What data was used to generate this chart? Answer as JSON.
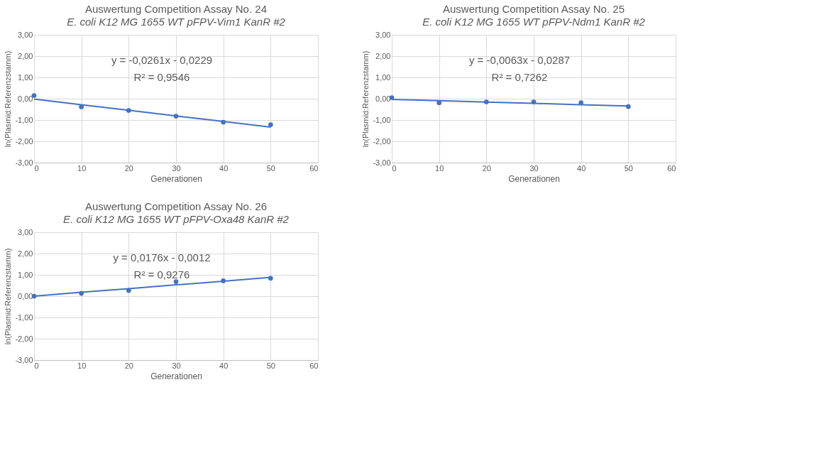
{
  "chart_data": [
    {
      "type": "scatter",
      "title": "Auswertung Competition Assay No. 24",
      "subtitle": "E. coli K12 MG 1655 WT pFPV-Vim1 KanR #2",
      "xlabel": "Generationen",
      "ylabel": "ln(Plasmid:Referenzstamm)",
      "x": [
        0,
        10,
        20,
        30,
        40,
        50
      ],
      "series": [
        {
          "color": "#4472c4",
          "values": [
            0.15,
            -0.38,
            -0.55,
            -0.82,
            -1.1,
            -1.22
          ]
        },
        {
          "type": "line",
          "marker": "none",
          "color": "#4472c4",
          "values": [
            -0.02,
            -0.28,
            -0.54,
            -0.81,
            -1.07,
            -1.33
          ]
        }
      ],
      "xlim": [
        0,
        60
      ],
      "xticks": [
        0,
        10,
        20,
        30,
        40,
        50,
        60
      ],
      "ylim": [
        -3,
        3
      ],
      "yticks": [
        {
          "value": -3,
          "label": "-3,00"
        },
        {
          "value": -2,
          "label": "-2,00"
        },
        {
          "value": -1,
          "label": "-1,00"
        },
        {
          "value": 0,
          "label": "0,00"
        },
        {
          "value": 1,
          "label": "1,00"
        },
        {
          "value": 2,
          "label": "2,00"
        },
        {
          "value": 3,
          "label": "3,00"
        }
      ],
      "annotations": [
        "y = -0,0261x - 0,0229",
        "R² = 0,9546"
      ],
      "grid": true,
      "marker": "circle",
      "line_style": "solid"
    },
    {
      "type": "scatter",
      "title": "Auswertung Competition Assay No. 25",
      "subtitle": "E. coli K12 MG 1655 WT pFPV-Ndm1 KanR #2",
      "xlabel": "Generationen",
      "ylabel": "ln(Plasmid:Referenzstamm)",
      "x": [
        0,
        10,
        20,
        30,
        40,
        50
      ],
      "series": [
        {
          "color": "#4472c4",
          "values": [
            0.05,
            -0.19,
            -0.15,
            -0.15,
            -0.19,
            -0.37
          ]
        },
        {
          "type": "line",
          "marker": "none",
          "color": "#4472c4",
          "values": [
            -0.03,
            -0.09,
            -0.16,
            -0.22,
            -0.28,
            -0.34
          ]
        }
      ],
      "xlim": [
        0,
        60
      ],
      "xticks": [
        0,
        10,
        20,
        30,
        40,
        50,
        60
      ],
      "ylim": [
        -3,
        3
      ],
      "yticks": [
        {
          "value": -3,
          "label": "-3,00"
        },
        {
          "value": -2,
          "label": "-2,00"
        },
        {
          "value": -1,
          "label": "-1,00"
        },
        {
          "value": 0,
          "label": "0,00"
        },
        {
          "value": 1,
          "label": "1,00"
        },
        {
          "value": 2,
          "label": "2,00"
        },
        {
          "value": 3,
          "label": "3,00"
        }
      ],
      "annotations": [
        "y = -0,0063x - 0,0287",
        "R² = 0,7262"
      ],
      "grid": true,
      "marker": "circle",
      "line_style": "solid"
    },
    {
      "type": "scatter",
      "title": "Auswertung Competition Assay No. 26",
      "subtitle": "E. coli K12 MG 1655 WT pFPV-Oxa48 KanR #2",
      "xlabel": "Generationen",
      "ylabel": "ln(Plasmid:Referenzstamm)",
      "x": [
        0,
        10,
        20,
        30,
        40,
        50
      ],
      "series": [
        {
          "color": "#4472c4",
          "values": [
            0.0,
            0.13,
            0.27,
            0.68,
            0.72,
            0.84
          ]
        },
        {
          "type": "line",
          "marker": "none",
          "color": "#4472c4",
          "values": [
            0.0,
            0.18,
            0.35,
            0.53,
            0.7,
            0.88
          ]
        }
      ],
      "xlim": [
        0,
        60
      ],
      "xticks": [
        0,
        10,
        20,
        30,
        40,
        50,
        60
      ],
      "ylim": [
        -3,
        3
      ],
      "yticks": [
        {
          "value": -3,
          "label": "-3,00"
        },
        {
          "value": -2,
          "label": "-2,00"
        },
        {
          "value": -1,
          "label": "-1,00"
        },
        {
          "value": 0,
          "label": "0,00"
        },
        {
          "value": 1,
          "label": "1,00"
        },
        {
          "value": 2,
          "label": "2,00"
        },
        {
          "value": 3,
          "label": "3,00"
        }
      ],
      "annotations": [
        "y = 0,0176x - 0,0012",
        "R² = 0,9276"
      ],
      "grid": true,
      "marker": "circle",
      "line_style": "solid"
    }
  ]
}
